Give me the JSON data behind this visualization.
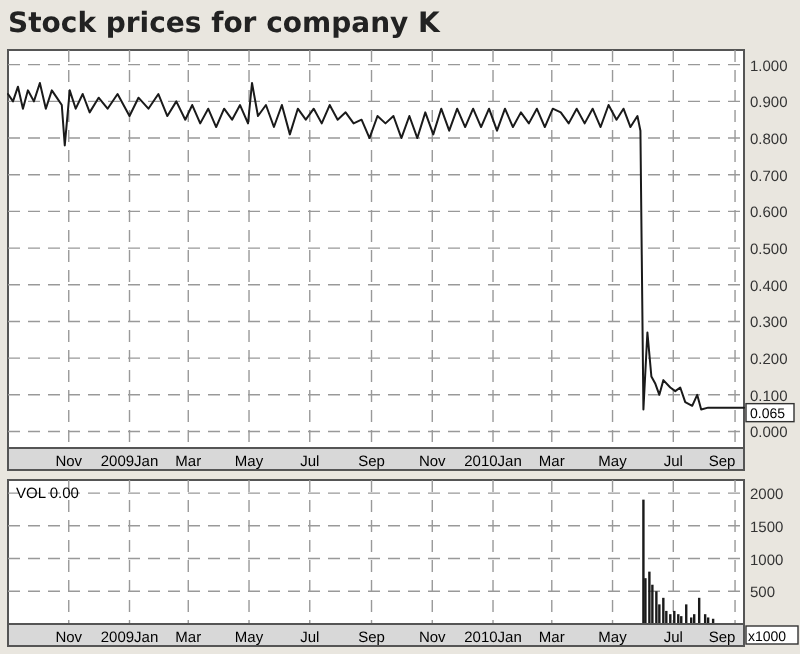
{
  "chart_data": [
    {
      "type": "line",
      "title": "Stock prices for company K",
      "grid": true,
      "line_style": "solid",
      "marker": "none",
      "xlim": [
        "2008-09-01",
        "2010-09-10"
      ],
      "xticks": [
        {
          "value": "2008-11-01",
          "label": "Nov"
        },
        {
          "value": "2009-01-01",
          "label": "2009Jan"
        },
        {
          "value": "2009-03-01",
          "label": "Mar"
        },
        {
          "value": "2009-05-01",
          "label": "May"
        },
        {
          "value": "2009-07-01",
          "label": "Jul"
        },
        {
          "value": "2009-09-01",
          "label": "Sep"
        },
        {
          "value": "2009-11-01",
          "label": "Nov"
        },
        {
          "value": "2010-01-01",
          "label": "2010Jan"
        },
        {
          "value": "2010-03-01",
          "label": "Mar"
        },
        {
          "value": "2010-05-01",
          "label": "May"
        },
        {
          "value": "2010-07-01",
          "label": "Jul"
        },
        {
          "value": "2010-09-01",
          "label": "Sep"
        }
      ],
      "ylim": [
        -0.045,
        1.04
      ],
      "yticks": [
        {
          "value": 0,
          "label": "0.000"
        },
        {
          "value": 0.1,
          "label": "0.100"
        },
        {
          "value": 0.2,
          "label": "0.200"
        },
        {
          "value": 0.3,
          "label": "0.300"
        },
        {
          "value": 0.4,
          "label": "0.400"
        },
        {
          "value": 0.5,
          "label": "0.500"
        },
        {
          "value": 0.6,
          "label": "0.600"
        },
        {
          "value": 0.7,
          "label": "0.700"
        },
        {
          "value": 0.8,
          "label": "0.800"
        },
        {
          "value": 0.9,
          "label": "0.900"
        },
        {
          "value": 1,
          "label": "1.000"
        }
      ],
      "annotations": [
        {
          "text": "0.065",
          "x": "2010-09-10",
          "y": 0.065
        }
      ],
      "series": [
        {
          "color": "#1a1a1a",
          "x": [
            "2008-09-01",
            "2008-09-06",
            "2008-09-11",
            "2008-09-16",
            "2008-09-21",
            "2008-09-27",
            "2008-10-03",
            "2008-10-09",
            "2008-10-15",
            "2008-10-20",
            "2008-10-25",
            "2008-10-28",
            "2008-11-02",
            "2008-11-08",
            "2008-11-15",
            "2008-11-22",
            "2008-12-01",
            "2008-12-10",
            "2008-12-20",
            "2009-01-01",
            "2009-01-10",
            "2009-01-20",
            "2009-01-30",
            "2009-02-08",
            "2009-02-17",
            "2009-02-26",
            "2009-03-05",
            "2009-03-13",
            "2009-03-21",
            "2009-03-29",
            "2009-04-06",
            "2009-04-14",
            "2009-04-22",
            "2009-04-30",
            "2009-05-04",
            "2009-05-10",
            "2009-05-18",
            "2009-05-26",
            "2009-06-03",
            "2009-06-11",
            "2009-06-19",
            "2009-06-27",
            "2009-07-05",
            "2009-07-13",
            "2009-07-21",
            "2009-07-29",
            "2009-08-06",
            "2009-08-14",
            "2009-08-22",
            "2009-08-30",
            "2009-09-07",
            "2009-09-15",
            "2009-09-23",
            "2009-10-01",
            "2009-10-09",
            "2009-10-17",
            "2009-10-25",
            "2009-11-02",
            "2009-11-10",
            "2009-11-18",
            "2009-11-26",
            "2009-12-04",
            "2009-12-12",
            "2009-12-20",
            "2009-12-28",
            "2010-01-05",
            "2010-01-13",
            "2010-01-21",
            "2010-01-29",
            "2010-02-06",
            "2010-02-14",
            "2010-02-22",
            "2010-03-02",
            "2010-03-10",
            "2010-03-18",
            "2010-03-26",
            "2010-04-03",
            "2010-04-11",
            "2010-04-19",
            "2010-04-27",
            "2010-05-05",
            "2010-05-12",
            "2010-05-19",
            "2010-05-26",
            "2010-05-29",
            "2010-06-01",
            "2010-06-05",
            "2010-06-09",
            "2010-06-13",
            "2010-06-17",
            "2010-06-21",
            "2010-06-28",
            "2010-07-03",
            "2010-07-08",
            "2010-07-13",
            "2010-07-20",
            "2010-07-25",
            "2010-07-29",
            "2010-08-05",
            "2010-09-10"
          ],
          "values": [
            0.92,
            0.9,
            0.94,
            0.88,
            0.93,
            0.9,
            0.95,
            0.88,
            0.93,
            0.91,
            0.89,
            0.78,
            0.93,
            0.88,
            0.92,
            0.87,
            0.91,
            0.88,
            0.92,
            0.86,
            0.91,
            0.88,
            0.92,
            0.86,
            0.9,
            0.85,
            0.89,
            0.84,
            0.88,
            0.83,
            0.88,
            0.85,
            0.89,
            0.84,
            0.95,
            0.86,
            0.89,
            0.83,
            0.89,
            0.81,
            0.88,
            0.85,
            0.88,
            0.84,
            0.89,
            0.85,
            0.87,
            0.84,
            0.85,
            0.8,
            0.86,
            0.84,
            0.86,
            0.8,
            0.86,
            0.8,
            0.87,
            0.81,
            0.88,
            0.82,
            0.88,
            0.83,
            0.88,
            0.83,
            0.88,
            0.82,
            0.88,
            0.83,
            0.87,
            0.84,
            0.88,
            0.83,
            0.88,
            0.87,
            0.84,
            0.88,
            0.84,
            0.88,
            0.83,
            0.89,
            0.85,
            0.88,
            0.83,
            0.86,
            0.82,
            0.06,
            0.27,
            0.15,
            0.13,
            0.1,
            0.14,
            0.12,
            0.11,
            0.12,
            0.08,
            0.07,
            0.1,
            0.06,
            0.065,
            0.065
          ]
        }
      ]
    },
    {
      "type": "bar",
      "grid": true,
      "annotations": [
        "VOL  0.00",
        "x1000"
      ],
      "xlim": [
        "2008-09-01",
        "2010-09-10"
      ],
      "xticks": [
        {
          "value": "2008-11-01",
          "label": "Nov"
        },
        {
          "value": "2009-01-01",
          "label": "2009Jan"
        },
        {
          "value": "2009-03-01",
          "label": "Mar"
        },
        {
          "value": "2009-05-01",
          "label": "May"
        },
        {
          "value": "2009-07-01",
          "label": "Jul"
        },
        {
          "value": "2009-09-01",
          "label": "Sep"
        },
        {
          "value": "2009-11-01",
          "label": "Nov"
        },
        {
          "value": "2010-01-01",
          "label": "2010Jan"
        },
        {
          "value": "2010-03-01",
          "label": "Mar"
        },
        {
          "value": "2010-05-01",
          "label": "May"
        },
        {
          "value": "2010-07-01",
          "label": "Jul"
        },
        {
          "value": "2010-09-01",
          "label": "Sep"
        }
      ],
      "ylim": [
        0,
        2200
      ],
      "yticks": [
        500,
        1000,
        1500,
        2000
      ],
      "series": [
        {
          "color": "#1a1a1a",
          "x": [
            "2010-06-01",
            "2010-06-03",
            "2010-06-07",
            "2010-06-10",
            "2010-06-14",
            "2010-06-17",
            "2010-06-21",
            "2010-06-24",
            "2010-06-28",
            "2010-07-02",
            "2010-07-06",
            "2010-07-09",
            "2010-07-14",
            "2010-07-19",
            "2010-07-22",
            "2010-07-27",
            "2010-08-02",
            "2010-08-05",
            "2010-08-10"
          ],
          "values": [
            1900,
            700,
            800,
            600,
            500,
            300,
            400,
            200,
            150,
            200,
            150,
            120,
            300,
            100,
            150,
            400,
            150,
            100,
            80
          ]
        }
      ]
    }
  ]
}
